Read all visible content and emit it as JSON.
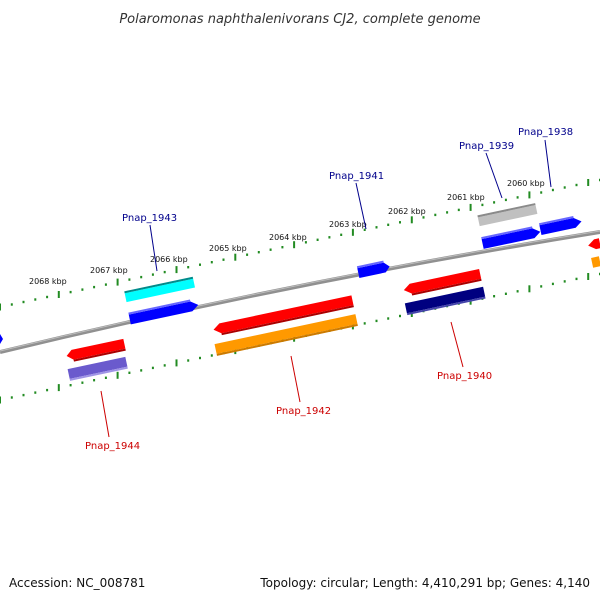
{
  "title": "Polaromonas naphthalenivorans CJ2, complete genome",
  "footer": {
    "accession": "Accession: NC_008781",
    "summary": "Topology: circular; Length: 4,410,291 bp; Genes: 4,140"
  },
  "scale_labels": [
    "2068 kbp",
    "2067 kbp",
    "2066 kbp",
    "2065 kbp",
    "2064 kbp",
    "2063 kbp",
    "2062 kbp",
    "2061 kbp",
    "2060 kbp"
  ],
  "gene_labels": [
    {
      "name": "Pnap_1938",
      "strand": "forward"
    },
    {
      "name": "Pnap_1939",
      "strand": "forward"
    },
    {
      "name": "Pnap_1941",
      "strand": "forward"
    },
    {
      "name": "Pnap_1943",
      "strand": "forward"
    },
    {
      "name": "Pnap_1940",
      "strand": "reverse"
    },
    {
      "name": "Pnap_1942",
      "strand": "reverse"
    },
    {
      "name": "Pnap_1944",
      "strand": "reverse"
    }
  ],
  "colors": {
    "forward_label": "#00008b",
    "reverse_label": "#cc0000",
    "backbone": "#808080",
    "ticks": "#228b22",
    "cds_red": "#ff0000",
    "cds_blue": "#0000ff",
    "cds_cyan": "#00ffff",
    "cds_gray": "#b0b0b0",
    "cds_navy": "#000080",
    "cds_orange": "#ff9900",
    "cds_purple": "#6a5acd"
  }
}
